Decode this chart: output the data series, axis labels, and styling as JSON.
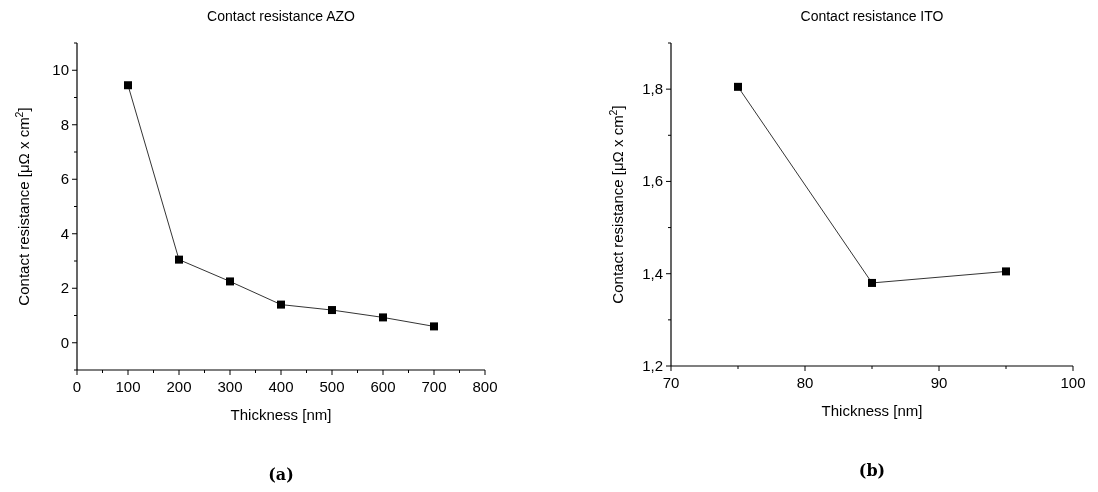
{
  "chart_data": [
    {
      "type": "line",
      "title": "Contact resistance AZO",
      "xlabel": "Thickness [nm]",
      "ylabel": "Contact resistance [μΩ x cm$^{2}$]",
      "x": [
        100,
        200,
        300,
        400,
        500,
        600,
        700
      ],
      "series": [
        {
          "color": "#000000",
          "values": [
            9.45,
            3.05,
            2.25,
            1.4,
            1.2,
            0.93,
            0.6
          ]
        }
      ],
      "marker": "square",
      "line_style": "solid",
      "grid": false,
      "xlim": [
        0,
        800
      ],
      "xticks": [
        0,
        {
          "value": 50,
          "label": null
        },
        100,
        {
          "value": 150,
          "label": null
        },
        200,
        {
          "value": 250,
          "label": null
        },
        300,
        {
          "value": 350,
          "label": null
        },
        400,
        {
          "value": 450,
          "label": null
        },
        500,
        {
          "value": 550,
          "label": null
        },
        600,
        {
          "value": 650,
          "label": null
        },
        700,
        {
          "value": 750,
          "label": null
        },
        800
      ],
      "ylim": [
        -1,
        11
      ],
      "yticks": [
        {
          "value": -1,
          "label": null
        },
        0,
        {
          "value": 1,
          "label": null
        },
        2,
        {
          "value": 3,
          "label": null
        },
        4,
        {
          "value": 5,
          "label": null
        },
        6,
        {
          "value": 7,
          "label": null
        },
        8,
        {
          "value": 9,
          "label": null
        },
        10,
        {
          "value": 11,
          "label": null
        }
      ],
      "annotations": [
        "(a)"
      ]
    },
    {
      "type": "line",
      "title": "Contact resistance ITO",
      "xlabel": "Thickness [nm]",
      "ylabel": "Contact resistance [μΩ x cm$^{2}$]",
      "x": [
        75,
        85,
        95
      ],
      "series": [
        {
          "color": "#000000",
          "values": [
            1.805,
            1.38,
            1.405
          ]
        }
      ],
      "marker": "square",
      "line_style": "solid",
      "grid": false,
      "xlim": [
        70,
        100
      ],
      "xticks": [
        70,
        {
          "value": 75,
          "label": null
        },
        80,
        {
          "value": 85,
          "label": null
        },
        90,
        {
          "value": 95,
          "label": null
        },
        100
      ],
      "ylim": [
        1.2,
        1.9
      ],
      "yticks": [
        {
          "value": 1.2,
          "label": "1,2"
        },
        {
          "value": 1.3,
          "label": null
        },
        {
          "value": 1.4,
          "label": "1,4"
        },
        {
          "value": 1.5,
          "label": null
        },
        {
          "value": 1.6,
          "label": "1,6"
        },
        {
          "value": 1.7,
          "label": null
        },
        {
          "value": 1.8,
          "label": "1,8"
        },
        {
          "value": 1.9,
          "label": null
        }
      ],
      "annotations": [
        "(b)"
      ]
    }
  ]
}
